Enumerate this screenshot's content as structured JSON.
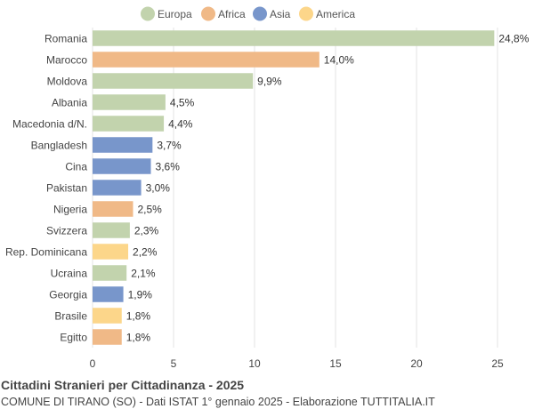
{
  "chart_data": {
    "type": "bar",
    "orientation": "horizontal",
    "categories": [
      "Romania",
      "Marocco",
      "Moldova",
      "Albania",
      "Macedonia d/N.",
      "Bangladesh",
      "Cina",
      "Pakistan",
      "Nigeria",
      "Svizzera",
      "Rep. Dominicana",
      "Ucraina",
      "Georgia",
      "Brasile",
      "Egitto"
    ],
    "values": [
      24.8,
      14.0,
      9.9,
      4.5,
      4.4,
      3.7,
      3.6,
      3.0,
      2.5,
      2.3,
      2.2,
      2.1,
      1.9,
      1.8,
      1.8
    ],
    "value_labels": [
      "24,8%",
      "14,0%",
      "9,9%",
      "4,5%",
      "4,4%",
      "3,7%",
      "3,6%",
      "3,0%",
      "2,5%",
      "2,3%",
      "2,2%",
      "2,1%",
      "1,9%",
      "1,8%",
      "1,8%"
    ],
    "continent": [
      "Europa",
      "Africa",
      "Europa",
      "Europa",
      "Europa",
      "Asia",
      "Asia",
      "Asia",
      "Africa",
      "Europa",
      "America",
      "Europa",
      "Asia",
      "America",
      "Africa"
    ],
    "legend": [
      {
        "name": "Europa",
        "color": "#c2d3ad"
      },
      {
        "name": "Africa",
        "color": "#f0b987"
      },
      {
        "name": "Asia",
        "color": "#7896cb"
      },
      {
        "name": "America",
        "color": "#fcd68a"
      }
    ],
    "legend_position": "top",
    "xlim": [
      0,
      25
    ],
    "xticks": [
      0,
      5,
      10,
      15,
      20,
      25
    ],
    "grid": true
  },
  "title": "Cittadini Stranieri per Cittadinanza - 2025",
  "subtitle": "COMUNE DI TIRANO (SO) - Dati ISTAT 1° gennaio 2025 - Elaborazione TUTTITALIA.IT"
}
